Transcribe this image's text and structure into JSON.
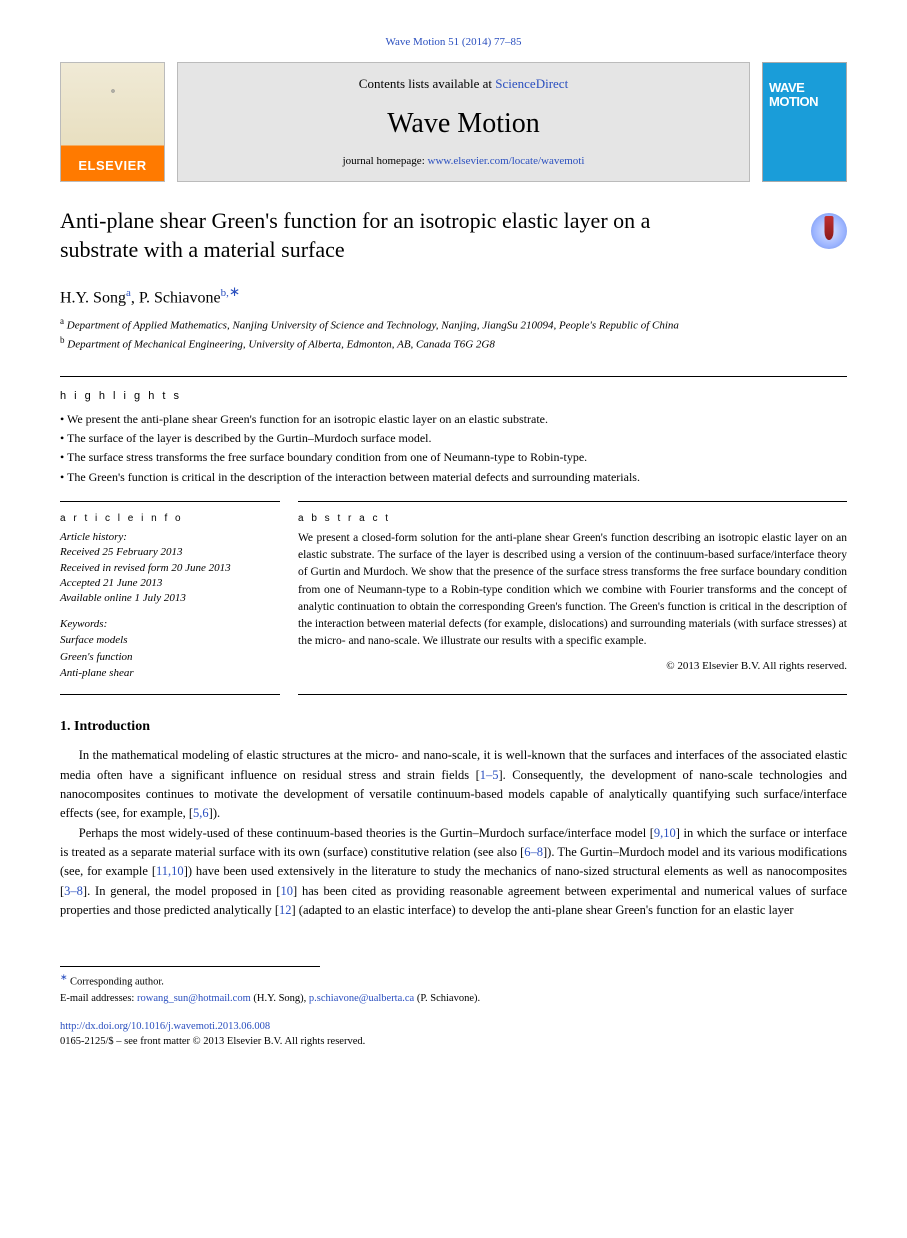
{
  "header_ref": "Wave Motion 51 (2014) 77–85",
  "banner": {
    "elsevier_label": "ELSEVIER",
    "contents_text": "Contents lists available at ",
    "contents_link": "ScienceDirect",
    "journal_title": "Wave Motion",
    "homepage_text": "journal homepage: ",
    "homepage_link": "www.elsevier.com/locate/wavemoti",
    "cover_text": "WAVE\nMOTION"
  },
  "paper_title": "Anti-plane shear Green's function for an isotropic elastic layer on a substrate with a material surface",
  "authors": {
    "a1_name": "H.Y. Song",
    "a1_sup": "a",
    "a2_name": "P. Schiavone",
    "a2_sup": "b,",
    "corr_mark": "∗"
  },
  "affiliations": {
    "a_sup": "a",
    "a_text": " Department of Applied Mathematics, Nanjing University of Science and Technology, Nanjing, JiangSu 210094, People's Republic of China",
    "b_sup": "b",
    "b_text": " Department of Mechanical Engineering, University of Alberta, Edmonton, AB, Canada T6G 2G8"
  },
  "highlights_heading": "h i g h l i g h t s",
  "highlights": [
    "We present the anti-plane shear Green's function for an isotropic elastic layer on an elastic substrate.",
    "The surface of the layer is described by the Gurtin–Murdoch surface model.",
    "The surface stress transforms the free surface boundary condition from one of Neumann-type to Robin-type.",
    "The Green's function is critical in the description of the interaction between material defects and surrounding materials."
  ],
  "article_info_heading": "a r t i c l e   i n f o",
  "history": {
    "l1": "Article history:",
    "l2": "Received 25 February 2013",
    "l3": "Received in revised form 20 June 2013",
    "l4": "Accepted 21 June 2013",
    "l5": "Available online 1 July 2013"
  },
  "keywords_heading": "Keywords:",
  "keywords": [
    "Surface models",
    "Green's function",
    "Anti-plane shear"
  ],
  "abstract_heading": "a b s t r a c t",
  "abstract_text": "We present a closed-form solution for the anti-plane shear Green's function describing an isotropic elastic layer on an elastic substrate. The surface of the layer is described using a version of the continuum-based surface/interface theory of Gurtin and Murdoch. We show that the presence of the surface stress transforms the free surface boundary condition from one of Neumann-type to a Robin-type condition which we combine with Fourier transforms and the concept of analytic continuation to obtain the corresponding Green's function. The Green's function is critical in the description of the interaction between material defects (for example, dislocations) and surrounding materials (with surface stresses) at the micro- and nano-scale. We illustrate our results with a specific example.",
  "copyright": "© 2013 Elsevier B.V. All rights reserved.",
  "intro_heading": "1. Introduction",
  "intro_text_parts": {
    "p1": "In the mathematical modeling of elastic structures at the micro- and nano-scale, it is well-known that the surfaces and interfaces of the associated elastic media often have a significant influence on residual stress and strain fields [",
    "r1": "1–5",
    "p2": "]. Consequently, the development of nano-scale technologies and nanocomposites continues to motivate the development of versatile continuum-based models capable of analytically quantifying such surface/interface effects (see, for example, [",
    "r2": "5,6",
    "p3": "]).",
    "p4": "Perhaps the most widely-used of these continuum-based theories is the Gurtin–Murdoch surface/interface model [",
    "r3": "9,10",
    "p5": "] in which the surface or interface is treated as a separate material surface with its own (surface) constitutive relation (see also [",
    "r4": "6–8",
    "p6": "]). The Gurtin–Murdoch model and its various modifications (see, for example [",
    "r5": "11,10",
    "p7": "]) have been used extensively in the literature to study the mechanics of nano-sized structural elements as well as nanocomposites [",
    "r6": "3–8",
    "p8": "]. In general, the model proposed in [",
    "r7": "10",
    "p9": "] has been cited as providing reasonable agreement between experimental and numerical values of surface properties and those predicted analytically [",
    "r8": "12",
    "p10": "] (adapted to an elastic interface) to develop the anti-plane shear Green's function for an elastic layer"
  },
  "footnotes": {
    "corr_label": "Corresponding author.",
    "email_label": "E-mail addresses: ",
    "email1": "rowang_sun@hotmail.com",
    "email1_who": " (H.Y. Song), ",
    "email2": "p.schiavone@ualberta.ca",
    "email2_who": " (P. Schiavone)."
  },
  "doi_link": "http://dx.doi.org/10.1016/j.wavemoti.2013.06.008",
  "rights": "0165-2125/$ – see front matter © 2013 Elsevier B.V. All rights reserved."
}
